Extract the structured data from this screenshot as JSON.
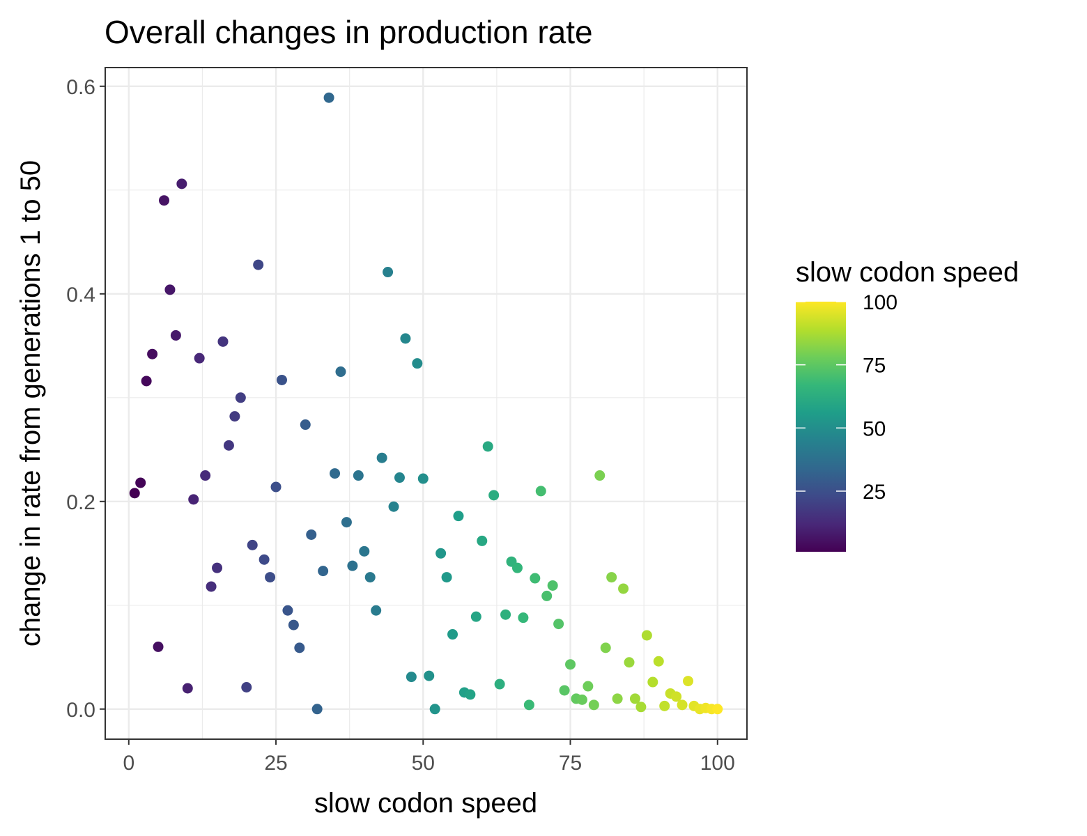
{
  "chart_data": {
    "type": "scatter",
    "title": "Overall changes in production rate",
    "xlabel": "slow codon speed",
    "ylabel": "change in rate from generations 1 to 50",
    "xlim": [
      -4,
      105
    ],
    "ylim": [
      -0.029,
      0.618
    ],
    "xticks": [
      0,
      25,
      50,
      75,
      100
    ],
    "xtick_labels": [
      "0",
      "25",
      "50",
      "75",
      "100"
    ],
    "yticks": [
      0.0,
      0.2,
      0.4,
      0.6
    ],
    "ytick_labels": [
      "0.0",
      "0.2",
      "0.4",
      "0.6"
    ],
    "x_minor_gridlines": [
      12.5,
      37.5,
      62.5,
      87.5
    ],
    "y_minor_gridlines": [
      0.1,
      0.3,
      0.5
    ],
    "grid": true,
    "panel_border": true,
    "color_scale": {
      "name": "viridis",
      "title": "slow codon speed",
      "domain": [
        1,
        100
      ],
      "breaks": [
        25,
        50,
        75,
        100
      ],
      "break_labels": [
        "25",
        "50",
        "75",
        "100"
      ],
      "colors": [
        "#440154",
        "#482878",
        "#3E4A89",
        "#31688E",
        "#26828E",
        "#1F9E89",
        "#35B779",
        "#6DCD59",
        "#B4DE2C",
        "#FDE725"
      ]
    },
    "legend_position": "right",
    "points": [
      {
        "x": 1,
        "y": 0.208
      },
      {
        "x": 2,
        "y": 0.218
      },
      {
        "x": 3,
        "y": 0.316
      },
      {
        "x": 4,
        "y": 0.342
      },
      {
        "x": 5,
        "y": 0.06
      },
      {
        "x": 6,
        "y": 0.49
      },
      {
        "x": 7,
        "y": 0.404
      },
      {
        "x": 8,
        "y": 0.36
      },
      {
        "x": 9,
        "y": 0.506
      },
      {
        "x": 10,
        "y": 0.02
      },
      {
        "x": 11,
        "y": 0.202
      },
      {
        "x": 12,
        "y": 0.338
      },
      {
        "x": 13,
        "y": 0.225
      },
      {
        "x": 14,
        "y": 0.118
      },
      {
        "x": 15,
        "y": 0.136
      },
      {
        "x": 16,
        "y": 0.354
      },
      {
        "x": 17,
        "y": 0.254
      },
      {
        "x": 18,
        "y": 0.282
      },
      {
        "x": 19,
        "y": 0.3
      },
      {
        "x": 20,
        "y": 0.021
      },
      {
        "x": 21,
        "y": 0.158
      },
      {
        "x": 22,
        "y": 0.428
      },
      {
        "x": 23,
        "y": 0.144
      },
      {
        "x": 24,
        "y": 0.127
      },
      {
        "x": 25,
        "y": 0.214
      },
      {
        "x": 26,
        "y": 0.317
      },
      {
        "x": 27,
        "y": 0.095
      },
      {
        "x": 28,
        "y": 0.081
      },
      {
        "x": 29,
        "y": 0.059
      },
      {
        "x": 30,
        "y": 0.274
      },
      {
        "x": 31,
        "y": 0.168
      },
      {
        "x": 32,
        "y": 0.0
      },
      {
        "x": 33,
        "y": 0.133
      },
      {
        "x": 34,
        "y": 0.589
      },
      {
        "x": 35,
        "y": 0.227
      },
      {
        "x": 36,
        "y": 0.325
      },
      {
        "x": 37,
        "y": 0.18
      },
      {
        "x": 38,
        "y": 0.138
      },
      {
        "x": 39,
        "y": 0.225
      },
      {
        "x": 40,
        "y": 0.152
      },
      {
        "x": 41,
        "y": 0.127
      },
      {
        "x": 42,
        "y": 0.095
      },
      {
        "x": 43,
        "y": 0.242
      },
      {
        "x": 44,
        "y": 0.421
      },
      {
        "x": 45,
        "y": 0.195
      },
      {
        "x": 46,
        "y": 0.223
      },
      {
        "x": 47,
        "y": 0.357
      },
      {
        "x": 48,
        "y": 0.031
      },
      {
        "x": 49,
        "y": 0.333
      },
      {
        "x": 50,
        "y": 0.222
      },
      {
        "x": 51,
        "y": 0.032
      },
      {
        "x": 52,
        "y": 0.0
      },
      {
        "x": 53,
        "y": 0.15
      },
      {
        "x": 54,
        "y": 0.127
      },
      {
        "x": 55,
        "y": 0.072
      },
      {
        "x": 56,
        "y": 0.186
      },
      {
        "x": 57,
        "y": 0.016
      },
      {
        "x": 58,
        "y": 0.014
      },
      {
        "x": 59,
        "y": 0.089
      },
      {
        "x": 60,
        "y": 0.162
      },
      {
        "x": 61,
        "y": 0.253
      },
      {
        "x": 62,
        "y": 0.206
      },
      {
        "x": 63,
        "y": 0.024
      },
      {
        "x": 64,
        "y": 0.091
      },
      {
        "x": 65,
        "y": 0.142
      },
      {
        "x": 66,
        "y": 0.136
      },
      {
        "x": 67,
        "y": 0.088
      },
      {
        "x": 68,
        "y": 0.004
      },
      {
        "x": 69,
        "y": 0.126
      },
      {
        "x": 70,
        "y": 0.21
      },
      {
        "x": 71,
        "y": 0.109
      },
      {
        "x": 72,
        "y": 0.119
      },
      {
        "x": 73,
        "y": 0.082
      },
      {
        "x": 74,
        "y": 0.018
      },
      {
        "x": 75,
        "y": 0.043
      },
      {
        "x": 76,
        "y": 0.01
      },
      {
        "x": 77,
        "y": 0.009
      },
      {
        "x": 78,
        "y": 0.022
      },
      {
        "x": 79,
        "y": 0.004
      },
      {
        "x": 80,
        "y": 0.225
      },
      {
        "x": 81,
        "y": 0.059
      },
      {
        "x": 82,
        "y": 0.127
      },
      {
        "x": 83,
        "y": 0.01
      },
      {
        "x": 84,
        "y": 0.116
      },
      {
        "x": 85,
        "y": 0.045
      },
      {
        "x": 86,
        "y": 0.01
      },
      {
        "x": 87,
        "y": 0.002
      },
      {
        "x": 88,
        "y": 0.071
      },
      {
        "x": 89,
        "y": 0.026
      },
      {
        "x": 90,
        "y": 0.046
      },
      {
        "x": 91,
        "y": 0.003
      },
      {
        "x": 92,
        "y": 0.015
      },
      {
        "x": 93,
        "y": 0.012
      },
      {
        "x": 94,
        "y": 0.004
      },
      {
        "x": 95,
        "y": 0.027
      },
      {
        "x": 96,
        "y": 0.003
      },
      {
        "x": 97,
        "y": 0.0
      },
      {
        "x": 98,
        "y": 0.001
      },
      {
        "x": 99,
        "y": 0.0
      },
      {
        "x": 100,
        "y": 0.0
      }
    ]
  }
}
